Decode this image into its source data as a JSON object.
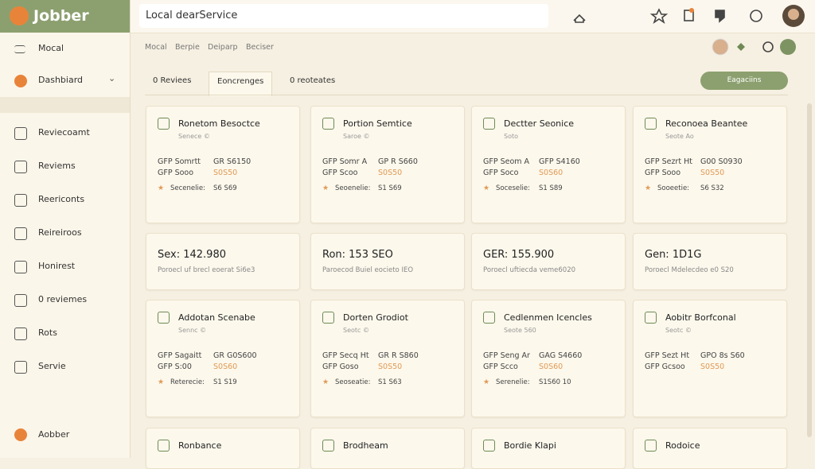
{
  "header": {
    "logo": "Jobber",
    "search": "Local dearService"
  },
  "sidebar": {
    "top": [
      "Mocal",
      "Dashbiard"
    ],
    "items": [
      "Reviecoamt",
      "Reviems",
      "Reericonts",
      "Reireiroos",
      "Honirest",
      "0 reviemes",
      "Rots",
      "Servie"
    ],
    "footer": "Aobber"
  },
  "breadcrumb": [
    "Mocal",
    "Berpie",
    "Deiparp",
    "Beciser"
  ],
  "tabs": [
    "0 Reviees",
    "Eoncrenges",
    "0 reoteates"
  ],
  "action_button": "Eagaciins",
  "service_cards_1": [
    {
      "title": "Ronetom Besoctce",
      "subtitle": "Senece ©",
      "label1": "GFP Somrtt",
      "value1": "GR S6150",
      "label2": "GFP Sooo",
      "value2": "S0S50",
      "rating": "Secenelie:",
      "rating_value": "S6 S69"
    },
    {
      "title": "Portion Semtice",
      "subtitle": "Saroe ©",
      "label1": "GFP Somr A",
      "value1": "GP R S660",
      "label2": "GFP Scoo",
      "value2": "S0S50",
      "rating": "Seoenelie:",
      "rating_value": "S1 S69"
    },
    {
      "title": "Dectter Seonice",
      "subtitle": "Soto",
      "label1": "GFP Seom A",
      "value1": "GFP S4160",
      "label2": "GFP Soco",
      "value2": "S0S60",
      "rating": "Soceselie:",
      "rating_value": "S1 S89"
    },
    {
      "title": "Reconoea Beantee",
      "subtitle": "Seote Ao",
      "label1": "GFP Sezrt Ht",
      "value1": "G00 S0930",
      "label2": "GFP Sooo",
      "value2": "S0S50",
      "rating": "Sooeetie:",
      "rating_value": "S6 S32"
    }
  ],
  "stat_cards": [
    {
      "value": "Sex: 142.980",
      "caption": "Poroecl uf brecl eoerat Si6e3"
    },
    {
      "value": "Ron: 153 SEO",
      "caption": "Paroecod Buiel eocieto IEO"
    },
    {
      "value": "GER: 155.900",
      "caption": "Poroecl uftiecda veme6020"
    },
    {
      "value": "Gen: 1D1G",
      "caption": "Poroecl Mdelecdeo e0 S20"
    }
  ],
  "service_cards_2": [
    {
      "title": "Addotan Scenabe",
      "subtitle": "Sennc ©",
      "label1": "GFP Sagaitt",
      "value1": "GR G0S600",
      "label2": "GFP S:00",
      "value2": "S0S60",
      "rating": "Reterecie:",
      "rating_value": "S1 S19"
    },
    {
      "title": "Dorten Grodiot",
      "subtitle": "Seotc ©",
      "label1": "GFP Secq Ht",
      "value1": "GR R S860",
      "label2": "GFP Goso",
      "value2": "S0S50",
      "rating": "Seoseatie:",
      "rating_value": "S1 S63"
    },
    {
      "title": "Cedlenmen Icencles",
      "subtitle": "Seote 560",
      "label1": "GFP Seng Ar",
      "value1": "GAG S4660",
      "label2": "GFP Scco",
      "value2": "S0S60",
      "rating": "Serenelie:",
      "rating_value": "S1S60 10"
    },
    {
      "title": "Aobitr Borfconal",
      "subtitle": "Seotc ©",
      "label1": "GFP Sezt Ht",
      "value1": "GPO 8s S60",
      "label2": "GFP Gcsoo",
      "value2": "S0S50"
    }
  ],
  "partial_cards": [
    {
      "title": "Ronbance"
    },
    {
      "title": "Brodheam"
    },
    {
      "title": "Bordie Klapi"
    },
    {
      "title": "Rodoice"
    }
  ]
}
